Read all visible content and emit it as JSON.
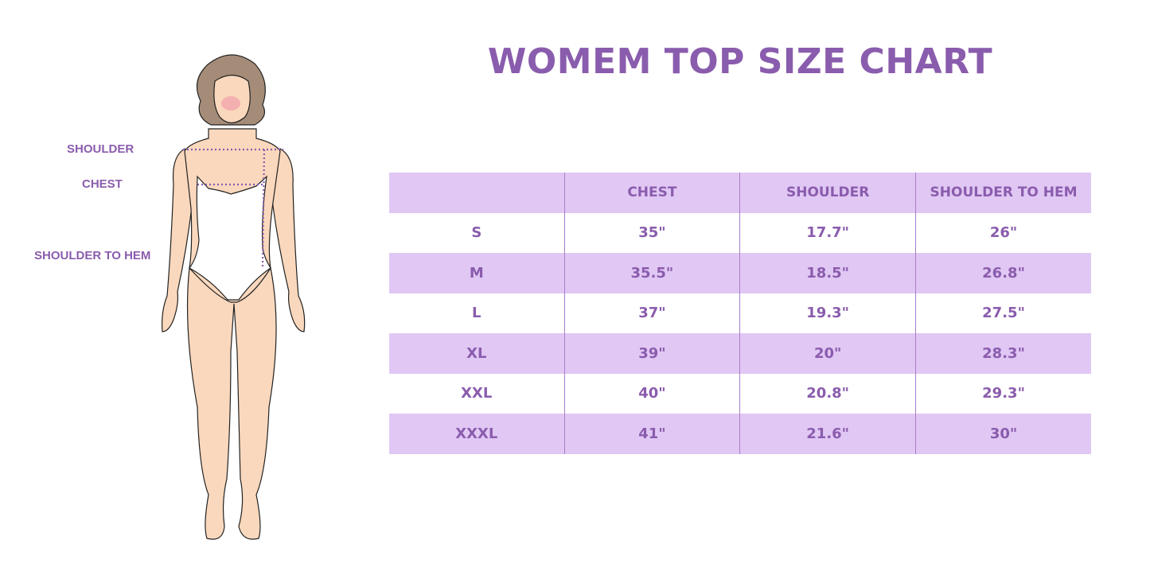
{
  "title": "WOMEM TOP SIZE CHART",
  "figure_labels": {
    "shoulder": "SHOULDER",
    "chest": "CHEST",
    "shoulder_to_hem": "SHOULDER TO HEM"
  },
  "colors": {
    "accent": "#8a5cad",
    "row_shade": "#e1c7f4",
    "skin": "#fad8bd",
    "hair": "#a48c78"
  },
  "table": {
    "headers": [
      "",
      "CHEST",
      "SHOULDER",
      "SHOULDER TO HEM"
    ],
    "rows": [
      [
        "S",
        "35\"",
        "17.7\"",
        "26\""
      ],
      [
        "M",
        "35.5\"",
        "18.5\"",
        "26.8\""
      ],
      [
        "L",
        "37\"",
        "19.3\"",
        "27.5\""
      ],
      [
        "XL",
        "39\"",
        "20\"",
        "28.3\""
      ],
      [
        "XXL",
        "40\"",
        "20.8\"",
        "29.3\""
      ],
      [
        "XXXL",
        "41\"",
        "21.6\"",
        "30\""
      ]
    ]
  }
}
